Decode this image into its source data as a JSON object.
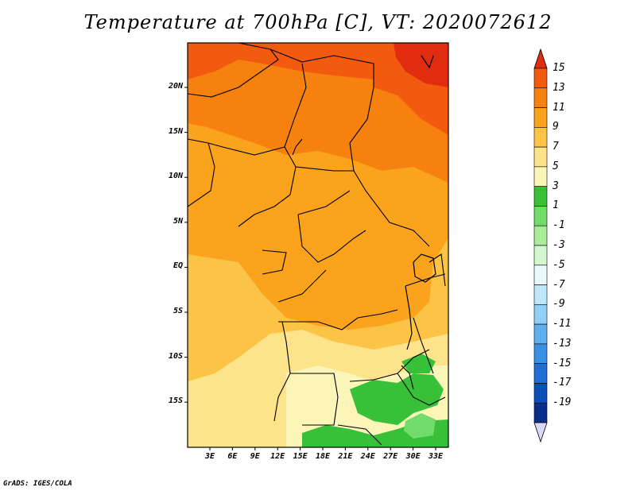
{
  "title": "Temperature at 700hPa [C], VT: 2020072612",
  "credit": "GrADS: IGES/COLA",
  "map": {
    "lat_ticks": [
      "20N",
      "15N",
      "10N",
      "5N",
      "EQ",
      "5S",
      "10S",
      "15S"
    ],
    "lon_ticks": [
      "3E",
      "6E",
      "9E",
      "12E",
      "15E",
      "18E",
      "21E",
      "24E",
      "27E",
      "30E",
      "33E"
    ],
    "region": "Central Africa",
    "lon_range": [
      0,
      35
    ],
    "lat_range": [
      -20,
      25
    ]
  },
  "colorbar": {
    "labels": [
      "15",
      "13",
      "11",
      "9",
      "7",
      "5",
      "3",
      "1",
      "-1",
      "-3",
      "-5",
      "-7",
      "-9",
      "-11",
      "-13",
      "-15",
      "-17",
      "-19"
    ],
    "colors": [
      "#e02d0f",
      "#f25a10",
      "#f7810f",
      "#fba31d",
      "#fbc447",
      "#fde38a",
      "#fbf5b8",
      "#37c038",
      "#72dc6a",
      "#a9ec99",
      "#d4f6ce",
      "#e8f8fb",
      "#bde6f9",
      "#91d0f6",
      "#5fb0ee",
      "#3a91e4",
      "#1f6fd6",
      "#0d4fb8",
      "#0a2f8a",
      "#d8d8f8"
    ]
  }
}
